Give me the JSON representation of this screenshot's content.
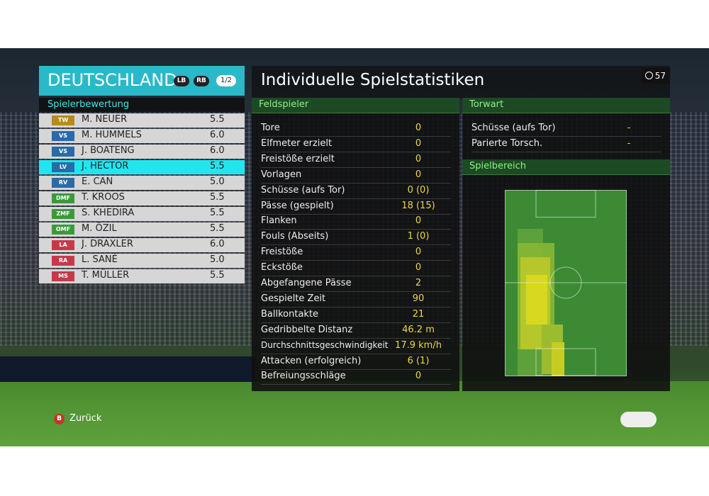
{
  "header": {
    "team": "DEUTSCHLAND",
    "buttons": [
      "LB",
      "RB"
    ],
    "page": "1/2",
    "title": "Individuelle Spielstatistiken",
    "timer": "57"
  },
  "ratings": {
    "title": "Spielerbewertung",
    "players": [
      {
        "position": "TW",
        "name": "M. NEUER",
        "rating": "5.5",
        "color": "#b88a1a"
      },
      {
        "position": "VS",
        "name": "M. HUMMELS",
        "rating": "6.0",
        "color": "#2a6aa8"
      },
      {
        "position": "VS",
        "name": "J. BOATENG",
        "rating": "6.0",
        "color": "#2a6aa8"
      },
      {
        "position": "LV",
        "name": "J. HECTOR",
        "rating": "5.5",
        "color": "#2a6aa8"
      },
      {
        "position": "RV",
        "name": "E. CAN",
        "rating": "5.0",
        "color": "#2a6aa8"
      },
      {
        "position": "DMF",
        "name": "T. KROOS",
        "rating": "5.5",
        "color": "#3a9a3a"
      },
      {
        "position": "ZMF",
        "name": "S. KHEDIRA",
        "rating": "5.5",
        "color": "#3a9a3a"
      },
      {
        "position": "OMF",
        "name": "M. ÖZIL",
        "rating": "5.5",
        "color": "#3a9a3a"
      },
      {
        "position": "LA",
        "name": "J. DRAXLER",
        "rating": "6.0",
        "color": "#c43a4a"
      },
      {
        "position": "RA",
        "name": "L. SANÉ",
        "rating": "5.0",
        "color": "#c43a4a"
      },
      {
        "position": "MS",
        "name": "T. MÜLLER",
        "rating": "5.5",
        "color": "#c43a4a"
      }
    ]
  },
  "field_player": {
    "title": "Feldspieler",
    "rows": [
      [
        "Tore",
        "0"
      ],
      [
        "Elfmeter erzielt",
        "0"
      ],
      [
        "Freistöße erzielt",
        "0"
      ],
      [
        "Vorlagen",
        "0"
      ],
      [
        "Schüsse (aufs Tor)",
        "0 (0)"
      ],
      [
        "Pässe (gespielt)",
        "18 (15)"
      ],
      [
        "Flanken",
        "0"
      ],
      [
        "Fouls (Abseits)",
        "1 (0)"
      ],
      [
        "Freistöße",
        "0"
      ],
      [
        "Eckstöße",
        "0"
      ],
      [
        "Abgefangene Pässe",
        "2"
      ],
      [
        "Gespielte Zeit",
        "90"
      ],
      [
        "Ballkontakte",
        "21"
      ],
      [
        "Gedribbelte Distanz",
        "46.2 m"
      ],
      [
        "Durchschnittsgeschwindigkeit",
        "17.9 km/h"
      ],
      [
        "Attacken (erfolgreich)",
        "6 (1)"
      ],
      [
        "Befreiungsschläge",
        "0"
      ]
    ]
  },
  "goalkeeper": {
    "title": "Torwart",
    "rows": [
      [
        "Schüsse (aufs Tor)",
        "-"
      ],
      [
        "Parierte Torsch.",
        "-"
      ]
    ]
  },
  "area": {
    "title": "Spielbereich"
  },
  "footer": {
    "back_button": "B",
    "back": "Zurück"
  }
}
